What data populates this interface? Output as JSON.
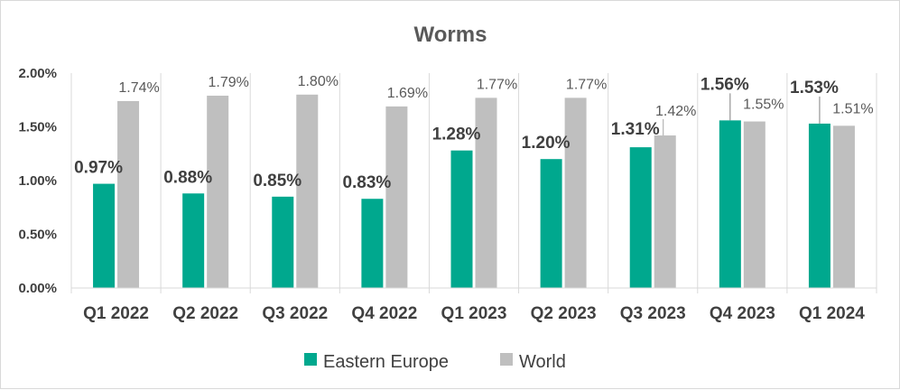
{
  "chart_data": {
    "type": "bar",
    "title": "Worms",
    "categories": [
      "Q1 2022",
      "Q2 2022",
      "Q3 2022",
      "Q4 2022",
      "Q1 2023",
      "Q2 2023",
      "Q3 2023",
      "Q4 2023",
      "Q1 2024"
    ],
    "series": [
      {
        "name": "Eastern Europe",
        "color": "#00a88e",
        "values": [
          0.97,
          0.88,
          0.85,
          0.83,
          1.28,
          1.2,
          1.31,
          1.56,
          1.53
        ],
        "labels": [
          "0.97%",
          "0.88%",
          "0.85%",
          "0.83%",
          "1.28%",
          "1.20%",
          "1.31%",
          "1.56%",
          "1.53%"
        ]
      },
      {
        "name": "World",
        "color": "#bfbfbf",
        "values": [
          1.74,
          1.79,
          1.8,
          1.69,
          1.77,
          1.77,
          1.42,
          1.55,
          1.51
        ],
        "labels": [
          "1.74%",
          "1.79%",
          "1.80%",
          "1.69%",
          "1.77%",
          "1.77%",
          "1.42%",
          "1.55%",
          "1.51%"
        ]
      }
    ],
    "ylim": [
      0,
      2.0
    ],
    "yticks": [
      "0.00%",
      "0.50%",
      "1.00%",
      "1.50%",
      "2.00%"
    ],
    "grid": "vertical category separators",
    "legend": "bottom"
  }
}
